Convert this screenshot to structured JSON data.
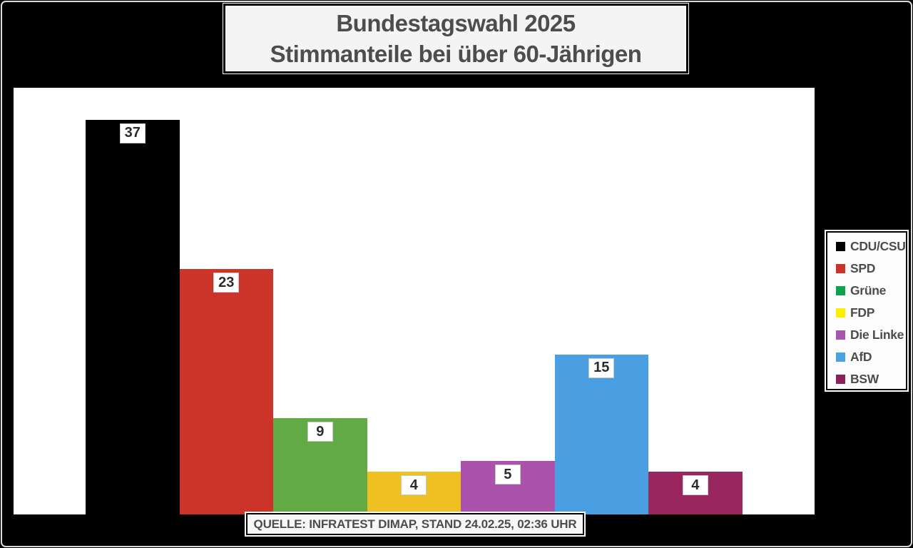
{
  "title": {
    "line1": "Bundestagswahl 2025",
    "line2": "Stimmanteile bei über 60-Jährigen"
  },
  "source": {
    "text": "QUELLE: INFRATEST DIMAP, STAND 24.02.25, 02:36 UHR"
  },
  "legend": {
    "items": [
      {
        "label": "CDU/CSU",
        "color": "#000000"
      },
      {
        "label": "SPD",
        "color": "#cc3328"
      },
      {
        "label": "Grüne",
        "color": "#0da24c"
      },
      {
        "label": "FDP",
        "color": "#fdee00"
      },
      {
        "label": "Die Linke",
        "color": "#a855ad"
      },
      {
        "label": "AfD",
        "color": "#4aa2e0"
      },
      {
        "label": "BSW",
        "color": "#8c1f5e"
      }
    ]
  },
  "chart_data": {
    "type": "bar",
    "title": "Bundestagswahl 2025 — Stimmanteile bei über 60-Jährigen",
    "categories": [
      "CDU/CSU",
      "SPD",
      "Grüne",
      "FDP",
      "Die Linke",
      "AfD",
      "BSW"
    ],
    "values": [
      37,
      23,
      9,
      4,
      5,
      15,
      4
    ],
    "unit": "percent",
    "bar_colors": [
      "#000000",
      "#cd3429",
      "#62ab44",
      "#eec021",
      "#ab52ac",
      "#4a9fe2",
      "#99265f"
    ],
    "value_labels_shown": true,
    "xlabel": "",
    "ylabel": "",
    "ylim": [
      0,
      40
    ],
    "grid": false,
    "axes_shown": false,
    "legend_position": "right",
    "source_note": "QUELLE: INFRATEST DIMAP, STAND 24.02.25, 02:36 UHR"
  }
}
